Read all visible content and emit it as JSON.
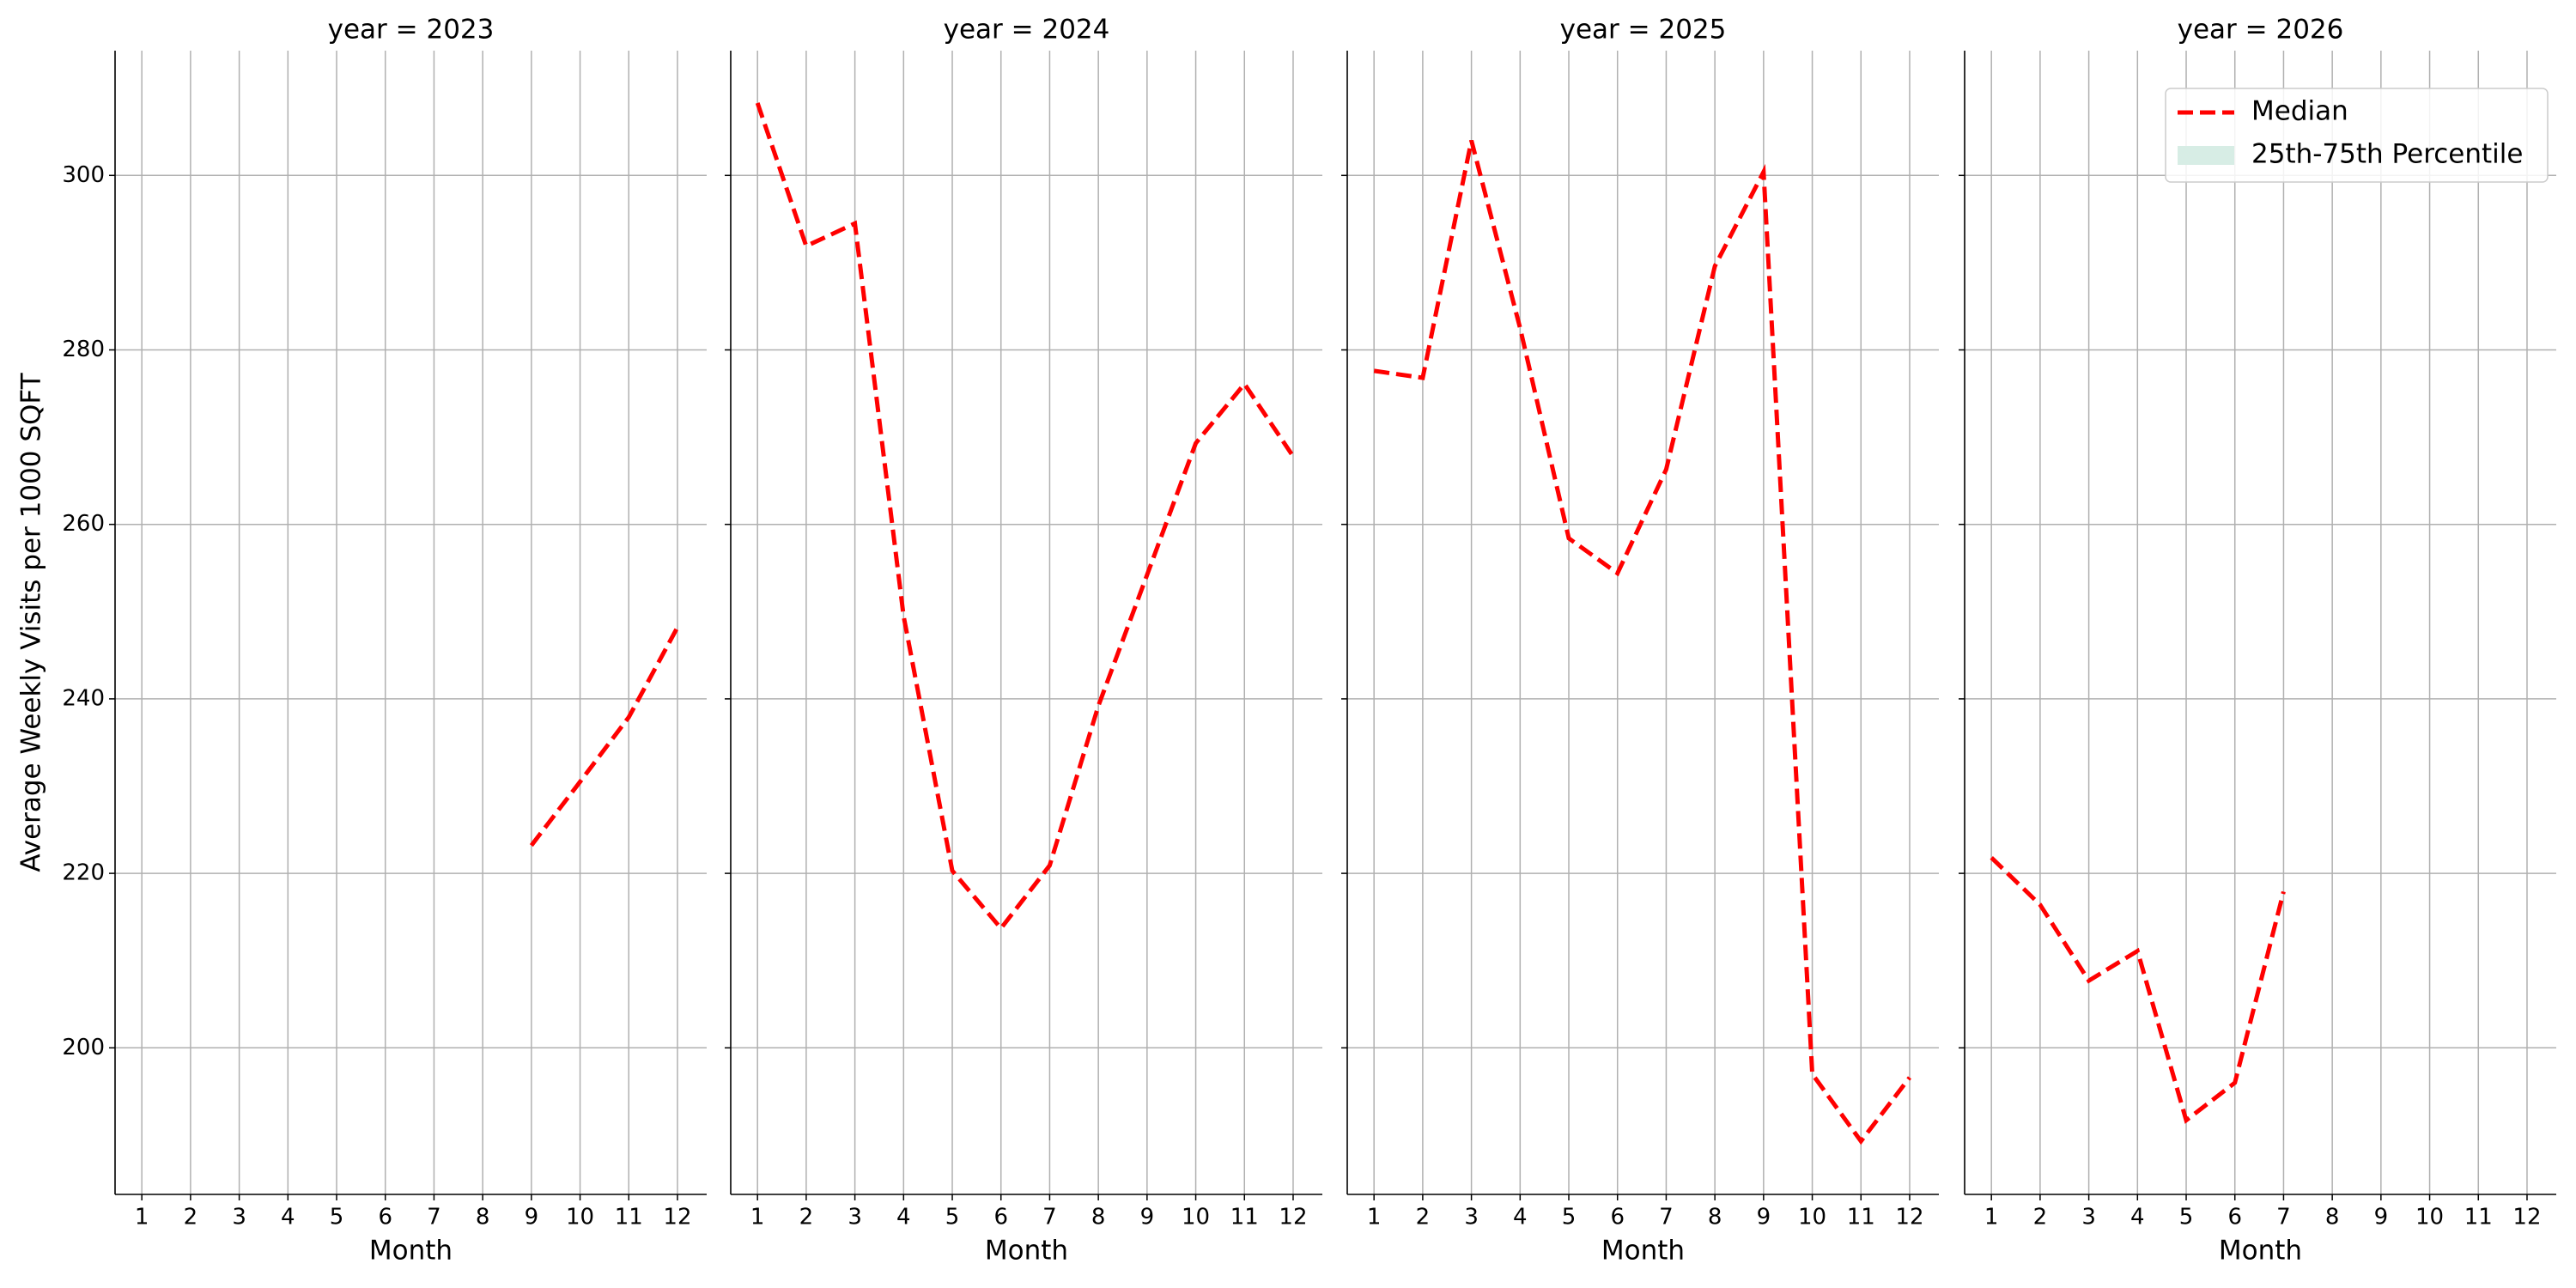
{
  "chart_data": [
    {
      "type": "line",
      "title": "year = 2023",
      "xlabel": "Month",
      "ylabel": "Average Weekly Visits per 1000 SQFT",
      "x": [
        1,
        2,
        3,
        4,
        5,
        6,
        7,
        8,
        9,
        10,
        11,
        12
      ],
      "series": [
        {
          "name": "Median",
          "color": "#ff0000",
          "values": [
            null,
            null,
            null,
            null,
            null,
            null,
            null,
            null,
            223.2,
            230.5,
            237.9,
            248.2
          ]
        }
      ],
      "xlim": [
        0.45,
        12.6
      ],
      "xticks": [
        1,
        2,
        3,
        4,
        5,
        6,
        7,
        8,
        9,
        10,
        11,
        12
      ],
      "ylim": [
        183.2,
        314.3
      ],
      "yticks": [
        200,
        220,
        240,
        260,
        280,
        300
      ],
      "grid": true
    },
    {
      "type": "line",
      "title": "year = 2024",
      "xlabel": "Month",
      "x": [
        1,
        2,
        3,
        4,
        5,
        6,
        7,
        8,
        9,
        10,
        11,
        12
      ],
      "series": [
        {
          "name": "Median",
          "color": "#ff0000",
          "values": [
            308.3,
            291.9,
            294.5,
            249.5,
            220.3,
            213.7,
            220.9,
            239.2,
            254.2,
            269.3,
            276.1,
            267.8
          ]
        }
      ],
      "xlim": [
        0.45,
        12.6
      ],
      "xticks": [
        1,
        2,
        3,
        4,
        5,
        6,
        7,
        8,
        9,
        10,
        11,
        12
      ],
      "ylim": [
        183.2,
        314.3
      ],
      "yticks": [
        200,
        220,
        240,
        260,
        280,
        300
      ],
      "grid": true
    },
    {
      "type": "line",
      "title": "year = 2025",
      "xlabel": "Month",
      "x": [
        1,
        2,
        3,
        4,
        5,
        6,
        7,
        8,
        9,
        10,
        11,
        12
      ],
      "series": [
        {
          "name": "Median",
          "color": "#ff0000",
          "values": [
            277.6,
            276.8,
            304.0,
            282.5,
            258.4,
            254.4,
            266.3,
            289.6,
            300.4,
            197.0,
            189.3,
            196.6
          ]
        }
      ],
      "xlim": [
        0.45,
        12.6
      ],
      "xticks": [
        1,
        2,
        3,
        4,
        5,
        6,
        7,
        8,
        9,
        10,
        11,
        12
      ],
      "ylim": [
        183.2,
        314.3
      ],
      "yticks": [
        200,
        220,
        240,
        260,
        280,
        300
      ],
      "grid": true
    },
    {
      "type": "line",
      "title": "year = 2026",
      "xlabel": "Month",
      "x": [
        1,
        2,
        3,
        4,
        5,
        6,
        7,
        8,
        9,
        10,
        11,
        12
      ],
      "series": [
        {
          "name": "Median",
          "color": "#ff0000",
          "values": [
            221.8,
            216.4,
            207.7,
            211.1,
            191.7,
            196.0,
            217.9,
            null,
            null,
            null,
            null,
            null
          ]
        }
      ],
      "xlim": [
        0.45,
        12.6
      ],
      "xticks": [
        1,
        2,
        3,
        4,
        5,
        6,
        7,
        8,
        9,
        10,
        11,
        12
      ],
      "ylim": [
        183.2,
        314.3
      ],
      "yticks": [
        200,
        220,
        240,
        260,
        280,
        300
      ],
      "grid": true,
      "legend": {
        "position": "upper right",
        "entries": [
          {
            "label": "Median",
            "color": "#ff0000",
            "style": "dashed"
          },
          {
            "label": "25th-75th Percentile",
            "color": "#d7ede5",
            "style": "patch"
          }
        ]
      }
    }
  ]
}
